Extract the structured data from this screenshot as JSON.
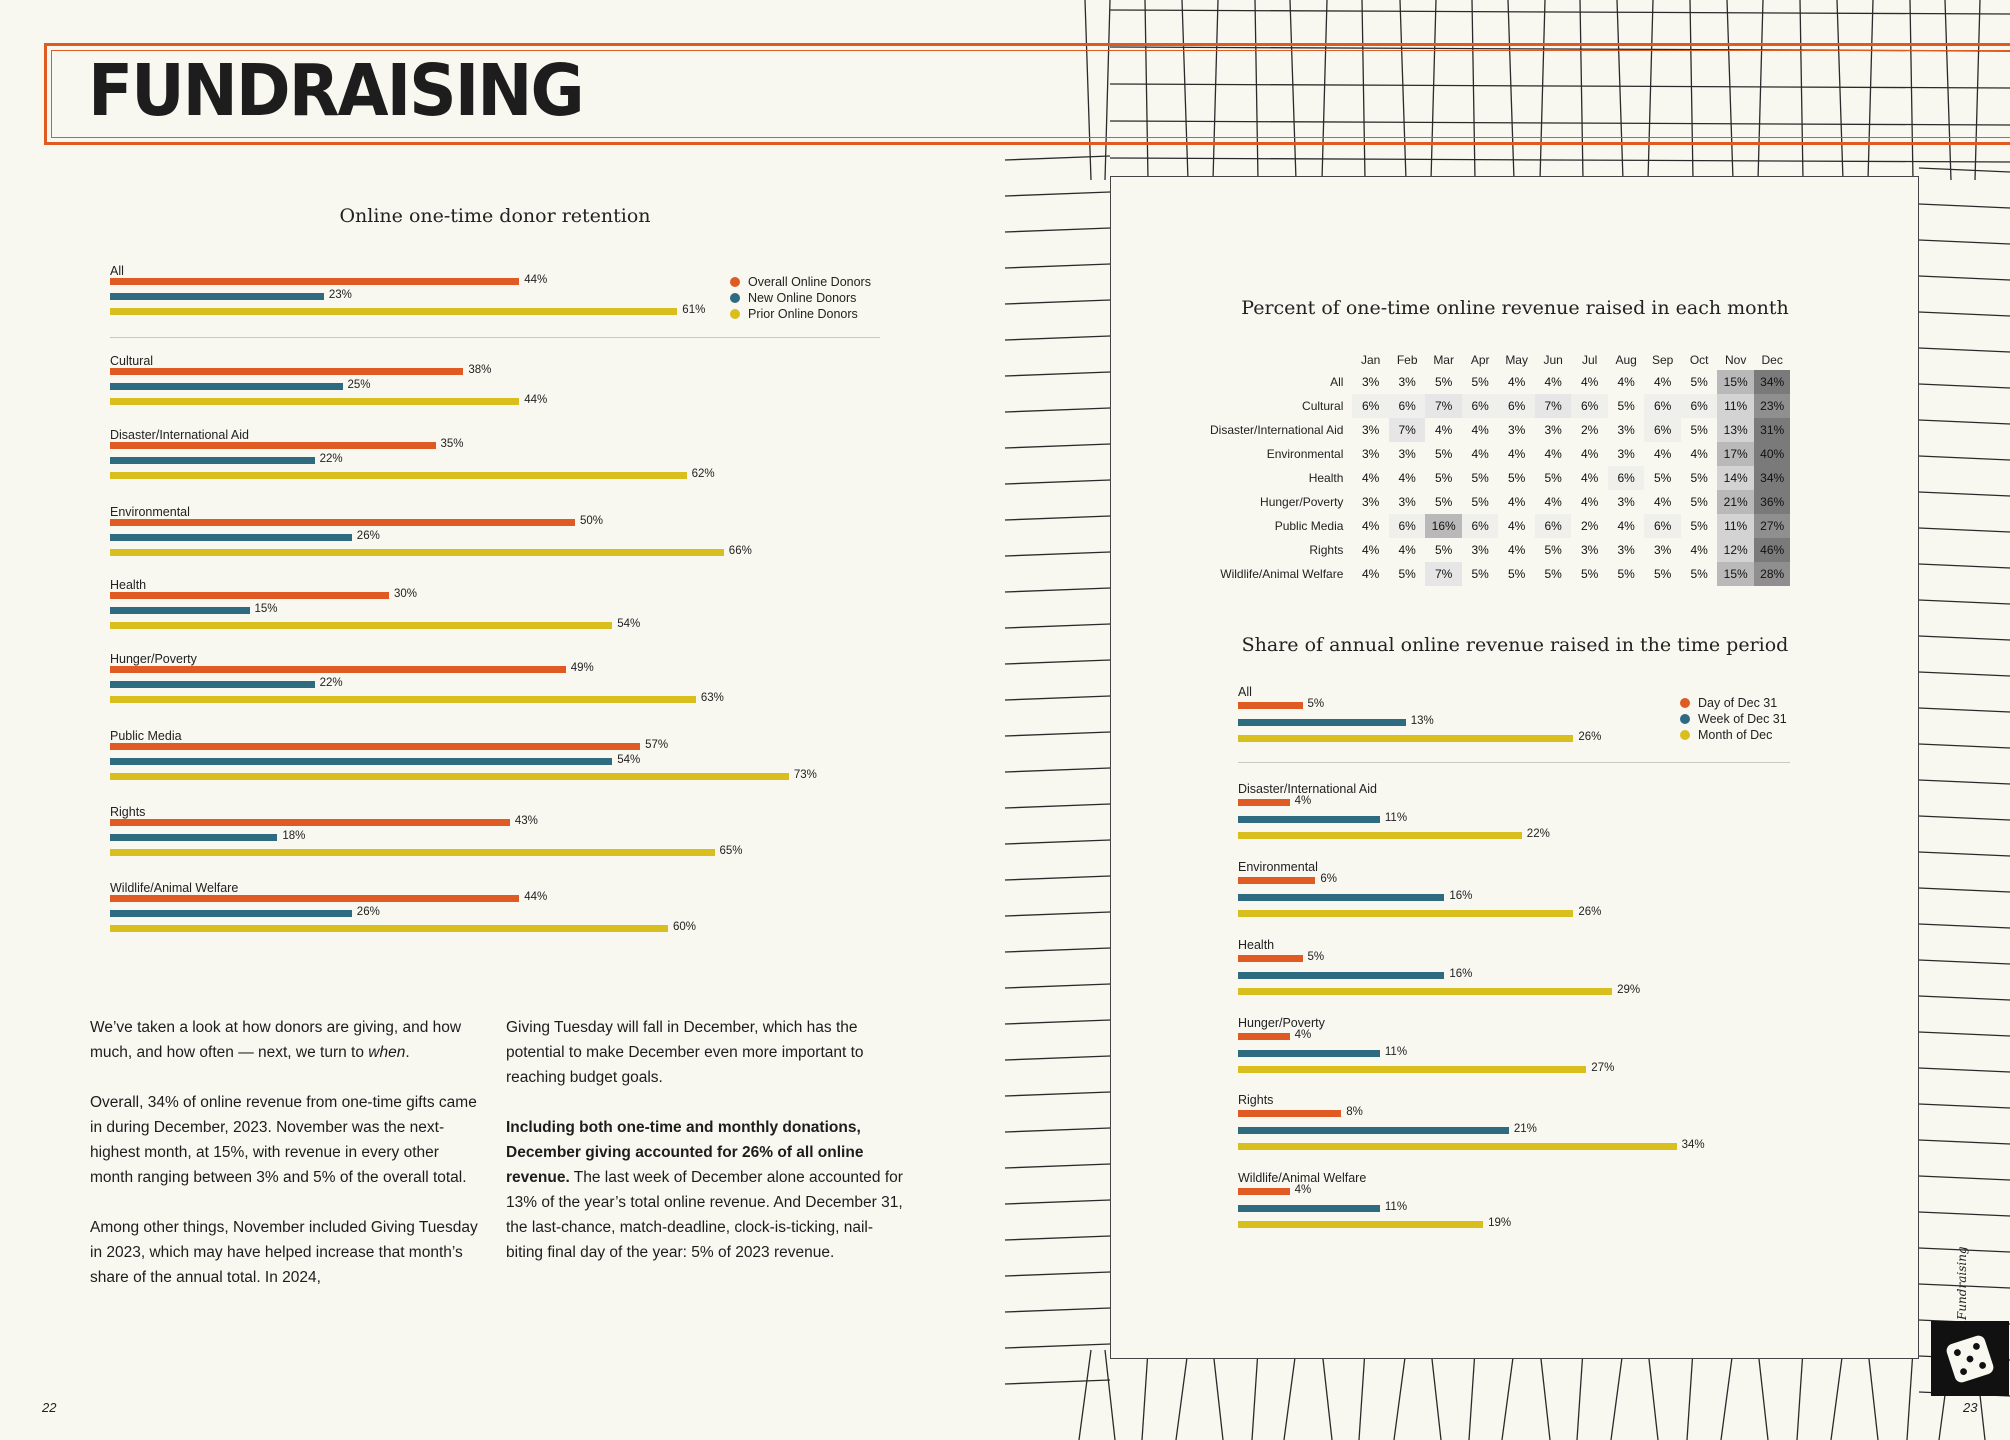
{
  "page_title": "FUNDRAISING",
  "colors": {
    "orange": "#e05a24",
    "blue": "#2e6a80",
    "yellow": "#d8bf1e"
  },
  "retention_chart": {
    "title": "Online one-time donor retention",
    "legend": [
      "Overall Online Donors",
      "New Online Donors",
      "Prior Online Donors"
    ],
    "chart_data": {
      "type": "bar",
      "orientation": "horizontal",
      "title": "Online one-time donor retention",
      "categories": [
        "All",
        "Cultural",
        "Disaster/International Aid",
        "Environmental",
        "Health",
        "Hunger/Poverty",
        "Public Media",
        "Rights",
        "Wildlife/Animal Welfare"
      ],
      "series": [
        {
          "name": "Overall Online Donors",
          "values": [
            44,
            38,
            35,
            50,
            30,
            49,
            57,
            43,
            44
          ]
        },
        {
          "name": "New Online Donors",
          "values": [
            23,
            25,
            22,
            26,
            15,
            22,
            54,
            18,
            26
          ]
        },
        {
          "name": "Prior Online Donors",
          "values": [
            61,
            44,
            62,
            66,
            54,
            63,
            73,
            65,
            60
          ]
        }
      ],
      "unit": "%"
    }
  },
  "heatmap_chart": {
    "title": "Percent of one-time online revenue raised in each month",
    "chart_data": {
      "type": "heatmap",
      "title": "Percent of one-time online revenue raised in each month",
      "columns": [
        "Jan",
        "Feb",
        "Mar",
        "Apr",
        "May",
        "Jun",
        "Jul",
        "Aug",
        "Sep",
        "Oct",
        "Nov",
        "Dec"
      ],
      "rows": [
        "All",
        "Cultural",
        "Disaster/International Aid",
        "Environmental",
        "Health",
        "Hunger/Poverty",
        "Public Media",
        "Rights",
        "Wildlife/Animal Welfare"
      ],
      "values": [
        [
          3,
          3,
          5,
          5,
          4,
          4,
          4,
          4,
          4,
          5,
          15,
          34
        ],
        [
          6,
          6,
          7,
          6,
          6,
          7,
          6,
          5,
          6,
          6,
          11,
          23
        ],
        [
          3,
          7,
          4,
          4,
          3,
          3,
          2,
          3,
          6,
          5,
          13,
          31
        ],
        [
          3,
          3,
          5,
          4,
          4,
          4,
          4,
          3,
          4,
          4,
          17,
          40
        ],
        [
          4,
          4,
          5,
          5,
          5,
          5,
          4,
          6,
          5,
          5,
          14,
          34
        ],
        [
          3,
          3,
          5,
          5,
          4,
          4,
          4,
          3,
          4,
          5,
          21,
          36
        ],
        [
          4,
          6,
          16,
          6,
          4,
          6,
          2,
          4,
          6,
          5,
          11,
          27
        ],
        [
          4,
          4,
          5,
          3,
          4,
          5,
          3,
          3,
          3,
          4,
          12,
          46
        ],
        [
          4,
          5,
          7,
          5,
          5,
          5,
          5,
          5,
          5,
          5,
          15,
          28
        ]
      ],
      "unit": "%"
    }
  },
  "share_chart": {
    "title": "Share of annual online revenue raised in the time period",
    "legend": [
      "Day of Dec 31",
      "Week of Dec 31",
      "Month of Dec"
    ],
    "chart_data": {
      "type": "bar",
      "orientation": "horizontal",
      "title": "Share of annual online revenue raised in the time period",
      "categories": [
        "All",
        "Disaster/International Aid",
        "Environmental",
        "Health",
        "Hunger/Poverty",
        "Rights",
        "Wildlife/Animal Welfare"
      ],
      "series": [
        {
          "name": "Day of Dec 31",
          "values": [
            5,
            4,
            6,
            5,
            4,
            8,
            4
          ]
        },
        {
          "name": "Week of Dec 31",
          "values": [
            13,
            11,
            16,
            16,
            11,
            21,
            11
          ]
        },
        {
          "name": "Month of Dec",
          "values": [
            26,
            22,
            26,
            29,
            27,
            34,
            19
          ]
        }
      ],
      "unit": "%"
    }
  },
  "text_col1": {
    "p1_a": "We’ve taken a look at how donors are giving, and how much, and how often — next, we turn to ",
    "p1_em": "when",
    "p1_b": ".",
    "p2": "Overall, 34% of online revenue from one-time gifts came in during December, 2023. November was the next-highest month, at 15%, with revenue in every other month ranging between 3% and 5% of the overall total.",
    "p3": "Among other things, November included Giving Tuesday in 2023, which may have helped increase that month’s share of the annual total. In 2024,"
  },
  "text_col2": {
    "p1": "Giving Tuesday will fall in December, which has the potential to make December even more important to reaching budget goals.",
    "p2_bold": "Including both one-time and monthly donations, December giving accounted for 26% of all online revenue.",
    "p2_rest": " The last week of December alone accounted for 13% of the year’s total online revenue. And December 31, the last-chance, match-deadline, clock-is-ticking, nail-biting final day of the year: 5% of 2023 revenue."
  },
  "page_left": "22",
  "page_right": "23",
  "side_label": "Fundraising",
  "dice_icon": "dice-icon"
}
